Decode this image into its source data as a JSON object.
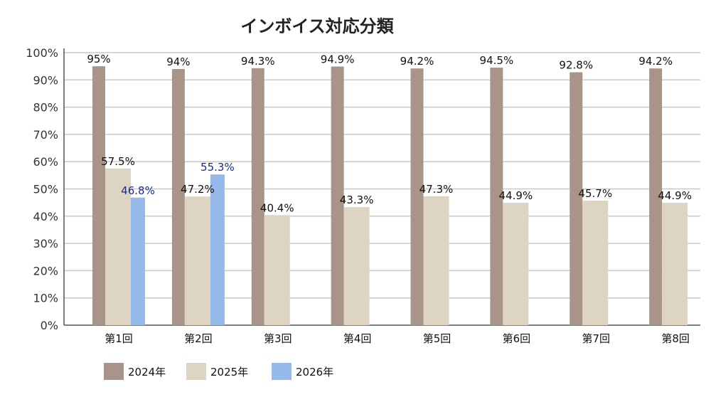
{
  "chart_data": {
    "type": "bar",
    "title": "インボイス対応分類",
    "categories": [
      "第1回",
      "第2回",
      "第3回",
      "第4回",
      "第5回",
      "第6回",
      "第7回",
      "第8回"
    ],
    "ylim": [
      0,
      100
    ],
    "yticks": [
      "0%",
      "10%",
      "20%",
      "30%",
      "40%",
      "50%",
      "60%",
      "70%",
      "80%",
      "90%",
      "100%"
    ],
    "grid": true,
    "legend_position": "bottom-left",
    "series": [
      {
        "name": "2024年",
        "color": "#a89489",
        "label_color": "#111111",
        "values": [
          95,
          94,
          94.3,
          94.9,
          94.2,
          94.5,
          92.8,
          94.2
        ],
        "labels": [
          "95%",
          "94%",
          "94.3%",
          "94.9%",
          "94.2%",
          "94.5%",
          "92.8%",
          "94.2%"
        ]
      },
      {
        "name": "2025年",
        "color": "#ddd4c3",
        "label_color": "#111111",
        "values": [
          57.5,
          47.2,
          40.4,
          43.3,
          47.3,
          44.9,
          45.7,
          44.9
        ],
        "labels": [
          "57.5%",
          "47.2%",
          "40.4%",
          "43.3%",
          "47.3%",
          "44.9%",
          "45.7%",
          "44.9%"
        ]
      },
      {
        "name": "2026年",
        "color": "#94b9ea",
        "label_color": "#1a2a8a",
        "values": [
          46.8,
          55.3,
          null,
          null,
          null,
          null,
          null,
          null
        ],
        "labels": [
          "46.8%",
          "55.3%",
          null,
          null,
          null,
          null,
          null,
          null
        ]
      }
    ]
  }
}
